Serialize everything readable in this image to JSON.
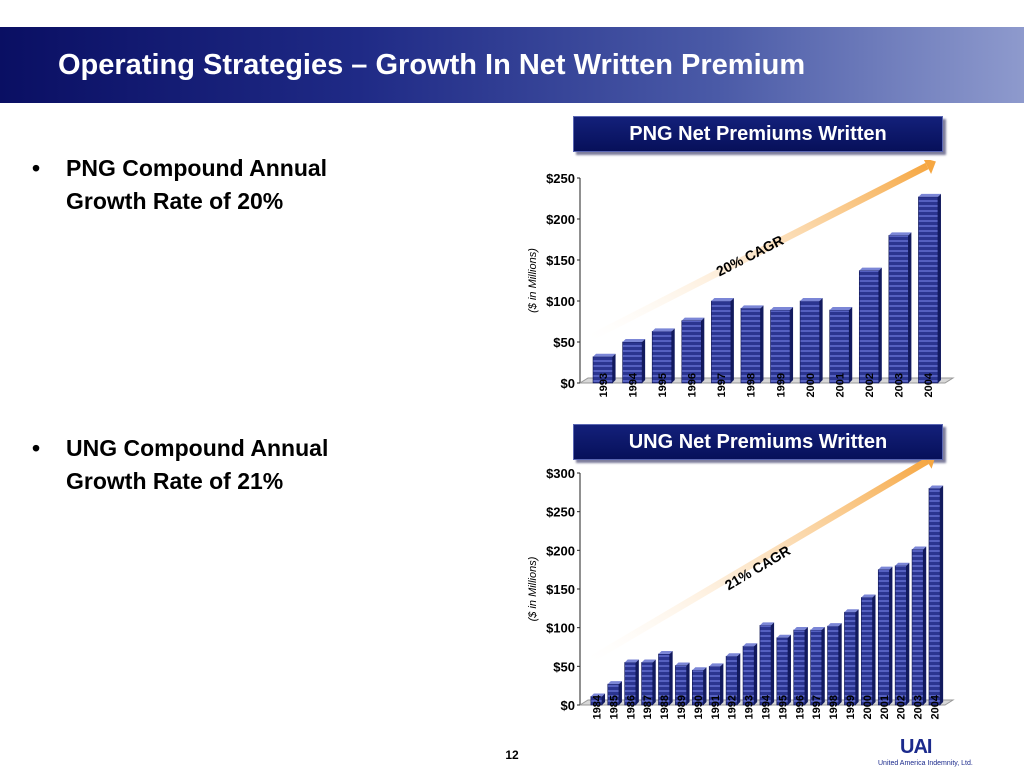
{
  "slide": {
    "title": "Operating Strategies – Growth In Net Written Premium",
    "page_number": "12",
    "logo_text": "UAI",
    "logo_subtext": "United America Indemnity, Ltd.",
    "bullet_char": "•",
    "bullets": [
      "PNG Compound Annual Growth Rate of 20%",
      "UNG Compound Annual Growth Rate of 21%"
    ]
  },
  "colors": {
    "title_bar_dark": "#0a0f63",
    "bar_fill": "#2b3590",
    "bar_stripe": "#5560c0",
    "arrow": "#f6a742"
  },
  "chart_data": [
    {
      "type": "bar",
      "title": "PNG Net Premiums Written",
      "ylabel": "($ in Millions)",
      "annotation": "20% CAGR",
      "categories": [
        "1993",
        "1994",
        "1995",
        "1996",
        "1997",
        "1998",
        "1999",
        "2000",
        "2001",
        "2002",
        "2003",
        "2004"
      ],
      "values": [
        32,
        50,
        63,
        76,
        100,
        91,
        89,
        100,
        89,
        137,
        180,
        227
      ],
      "yticks": [
        "$0",
        "$50",
        "$100",
        "$150",
        "$200",
        "$250"
      ],
      "ylim": [
        0,
        250
      ]
    },
    {
      "type": "bar",
      "title": "UNG Net Premiums Written",
      "ylabel": "($ in Millions)",
      "annotation": "21% CAGR",
      "categories": [
        "1984",
        "1985",
        "1986",
        "1987",
        "1988",
        "1989",
        "1990",
        "1991",
        "1992",
        "1993",
        "1994",
        "1995",
        "1996",
        "1997",
        "1998",
        "1999",
        "2000",
        "2001",
        "2002",
        "2003",
        "2004"
      ],
      "values": [
        11,
        27,
        55,
        55,
        66,
        51,
        45,
        50,
        63,
        76,
        103,
        87,
        97,
        97,
        102,
        120,
        139,
        175,
        180,
        201,
        280
      ],
      "yticks": [
        "$0",
        "$50",
        "$100",
        "$150",
        "$200",
        "$250",
        "$300"
      ],
      "ylim": [
        0,
        300
      ]
    }
  ]
}
